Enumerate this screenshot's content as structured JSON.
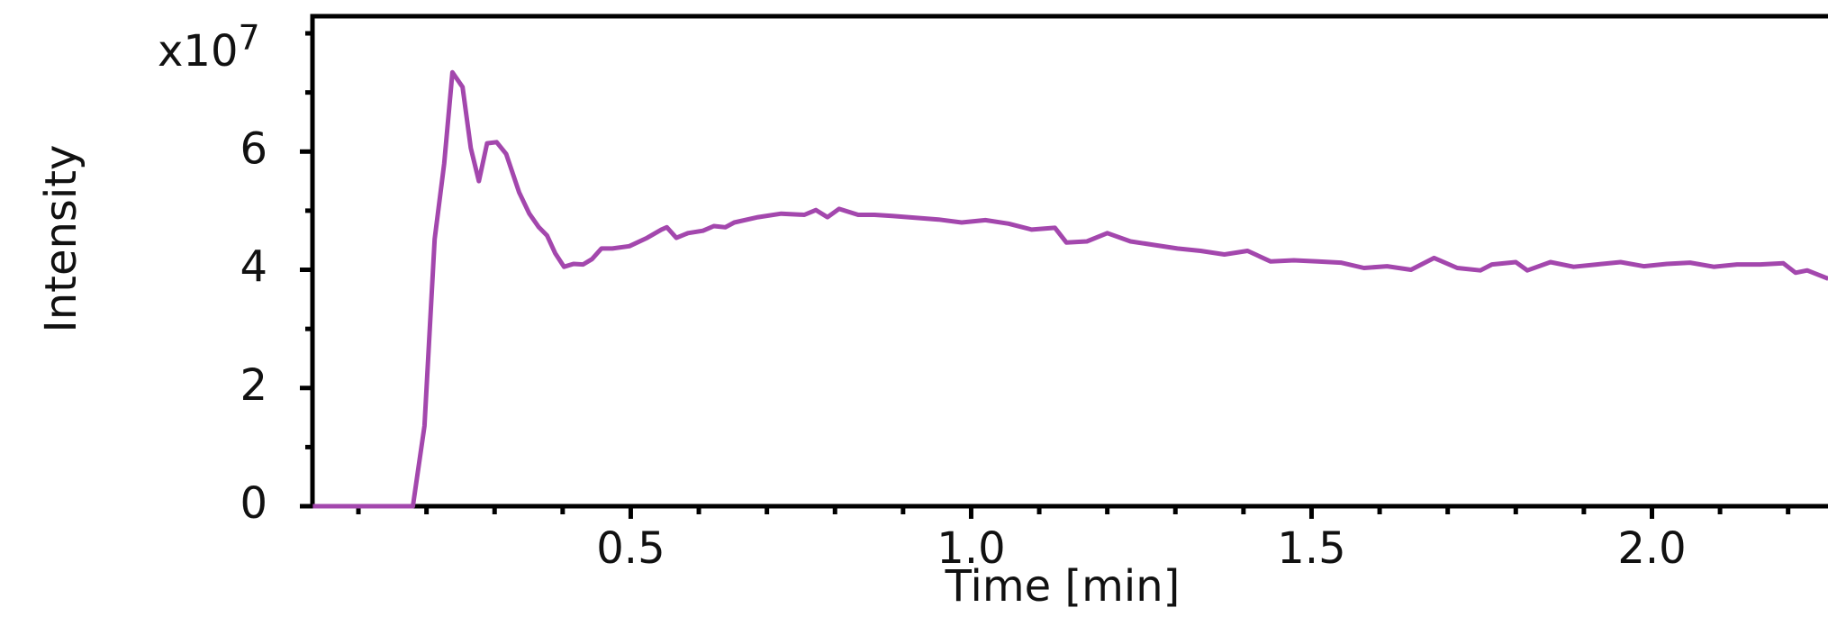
{
  "chart_data": {
    "type": "line",
    "y_axis_label": "Intensity",
    "x_axis_label": "Time [min]",
    "y_scale_label": {
      "base": "x10",
      "exponent": "7"
    },
    "series": [
      {
        "name": "Intensity",
        "color": "#a347ad",
        "x": [
          0.033,
          0.18,
          0.197,
          0.212,
          0.226,
          0.238,
          0.253,
          0.265,
          0.277,
          0.289,
          0.303,
          0.317,
          0.336,
          0.351,
          0.365,
          0.377,
          0.389,
          0.402,
          0.416,
          0.43,
          0.443,
          0.457,
          0.473,
          0.498,
          0.524,
          0.545,
          0.553,
          0.567,
          0.584,
          0.606,
          0.622,
          0.639,
          0.652,
          0.687,
          0.721,
          0.755,
          0.772,
          0.789,
          0.806,
          0.834,
          0.858,
          0.884,
          0.918,
          0.952,
          0.986,
          1.021,
          1.055,
          1.089,
          1.123,
          1.14,
          1.17,
          1.2,
          1.234,
          1.269,
          1.303,
          1.337,
          1.372,
          1.406,
          1.44,
          1.474,
          1.509,
          1.543,
          1.577,
          1.611,
          1.646,
          1.68,
          1.714,
          1.748,
          1.765,
          1.8,
          1.817,
          1.851,
          1.885,
          1.919,
          1.954,
          1.988,
          2.022,
          2.056,
          2.091,
          2.125,
          2.159,
          2.193,
          2.211,
          2.228,
          2.259
        ],
        "values": [
          0,
          0,
          1.36,
          4.52,
          5.8,
          7.34,
          7.09,
          6.06,
          5.5,
          6.14,
          6.16,
          5.96,
          5.31,
          4.95,
          4.72,
          4.58,
          4.28,
          4.05,
          4.1,
          4.09,
          4.18,
          4.36,
          4.36,
          4.4,
          4.54,
          4.68,
          4.72,
          4.54,
          4.62,
          4.66,
          4.74,
          4.72,
          4.8,
          4.89,
          4.95,
          4.93,
          5.01,
          4.89,
          5.03,
          4.93,
          4.93,
          4.91,
          4.88,
          4.85,
          4.8,
          4.84,
          4.78,
          4.68,
          4.71,
          4.46,
          4.48,
          4.62,
          4.48,
          4.42,
          4.36,
          4.32,
          4.26,
          4.32,
          4.14,
          4.16,
          4.14,
          4.12,
          4.03,
          4.06,
          4.0,
          4.2,
          4.03,
          3.99,
          4.09,
          4.13,
          3.99,
          4.13,
          4.05,
          4.09,
          4.13,
          4.06,
          4.1,
          4.12,
          4.05,
          4.09,
          4.09,
          4.11,
          3.95,
          3.99,
          3.85
        ]
      }
    ],
    "xlim": [
      0.0325,
      2.2586
    ],
    "xticks": [
      0.5,
      {
        "value": 1.0,
        "label": "1.0"
      },
      1.5,
      {
        "value": 2.0,
        "label": "2.0"
      }
    ],
    "xticks_minor": [
      0.1,
      0.2,
      0.3,
      0.4,
      0.6,
      0.7,
      0.8,
      0.9,
      1.1,
      1.2,
      1.3,
      1.4,
      1.6,
      1.7,
      1.8,
      1.9,
      2.1,
      2.2
    ],
    "ylim": [
      0,
      8.29
    ],
    "yticks": [
      0,
      2,
      4,
      6
    ],
    "yticks_unlabeled": [
      1,
      3,
      5,
      7,
      8
    ],
    "grid": false
  }
}
